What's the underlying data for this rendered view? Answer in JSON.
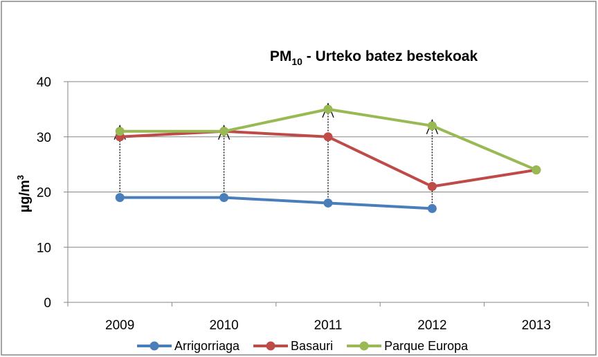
{
  "chart_data": {
    "type": "line",
    "title_parts": [
      "PM",
      "10",
      " - Urteko batez bestekoak"
    ],
    "y_label_parts": [
      "µg/m",
      "3"
    ],
    "categories": [
      "2009",
      "2010",
      "2011",
      "2012",
      "2013"
    ],
    "series": [
      {
        "name": "Arrigorriaga",
        "color": "#4a7ebb",
        "values": [
          19,
          19,
          18,
          17,
          null
        ]
      },
      {
        "name": "Basauri",
        "color": "#be4b48",
        "values": [
          30,
          31,
          30,
          21,
          24
        ]
      },
      {
        "name": "Parque Europa",
        "color": "#98b954",
        "values": [
          31,
          31,
          35,
          32,
          24
        ]
      }
    ],
    "ylim": [
      0,
      40
    ],
    "yticks": [
      0,
      10,
      20,
      30,
      40
    ],
    "grid": true,
    "legend": "bottom"
  }
}
